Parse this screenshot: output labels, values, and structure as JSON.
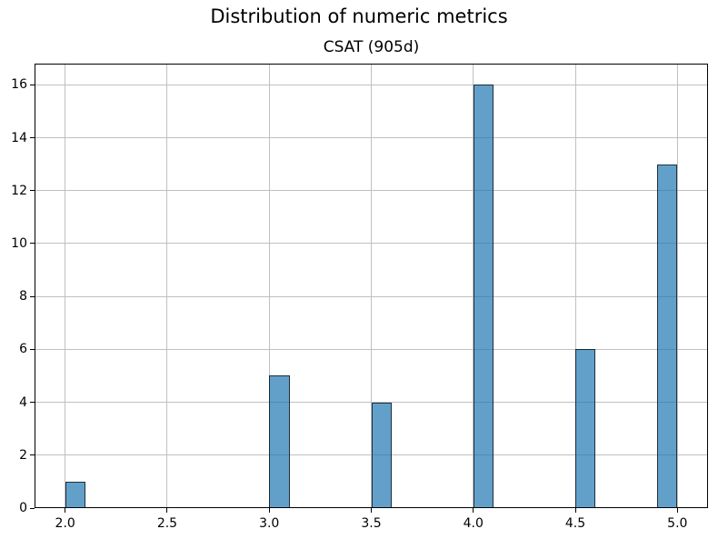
{
  "figure": {
    "title": "Distribution of numeric metrics",
    "background": "#ffffff"
  },
  "chart_data": {
    "type": "bar",
    "subtype": "histogram",
    "title": "CSAT (905d)",
    "xlabel": "",
    "ylabel": "",
    "bars": [
      {
        "x_start": 2.0,
        "x_end": 2.1,
        "count": 1
      },
      {
        "x_start": 3.0,
        "x_end": 3.1,
        "count": 5
      },
      {
        "x_start": 3.5,
        "x_end": 3.6,
        "count": 4
      },
      {
        "x_start": 4.0,
        "x_end": 4.1,
        "count": 16
      },
      {
        "x_start": 4.5,
        "x_end": 4.6,
        "count": 6
      },
      {
        "x_start": 4.9,
        "x_end": 5.0,
        "count": 13
      }
    ],
    "x_ticks": [
      2.0,
      2.5,
      3.0,
      3.5,
      4.0,
      4.5,
      5.0
    ],
    "x_tick_labels": [
      "2.0",
      "2.5",
      "3.0",
      "3.5",
      "4.0",
      "4.5",
      "5.0"
    ],
    "y_ticks": [
      0,
      2,
      4,
      6,
      8,
      10,
      12,
      14,
      16
    ],
    "y_tick_labels": [
      "0",
      "2",
      "4",
      "6",
      "8",
      "10",
      "12",
      "14",
      "16"
    ],
    "xlim": [
      1.85,
      5.15
    ],
    "ylim": [
      0,
      16.8
    ],
    "grid": true,
    "legend": false,
    "colors": {
      "bar_fill": "#1f77b4",
      "bar_fill_alpha": 0.7,
      "bar_edge": "#000000",
      "bar_edge_alpha": 0.7,
      "grid_color": "#c0c0c0",
      "spine_color": "#000000",
      "text_color": "#000000"
    }
  }
}
